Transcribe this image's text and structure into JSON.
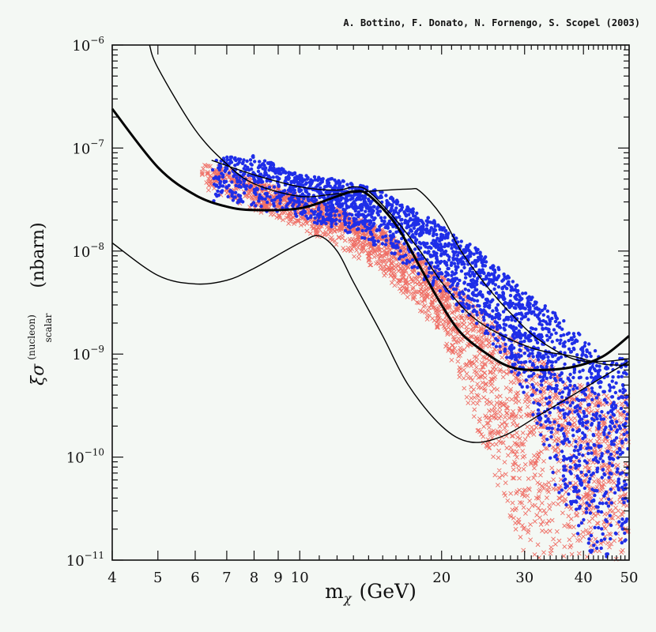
{
  "chart_data": {
    "type": "scatter",
    "title": "",
    "credit": "A. Bottino, F. Donato, N. Fornengo, S. Scopel (2003)",
    "xlabel": "m",
    "xlabel_sub": "χ",
    "xlabel_unit": "(GeV)",
    "ylabel_prefix": "ξσ",
    "ylabel_sup": "(nucleon)",
    "ylabel_sub": "scalar",
    "ylabel_unit": "(nbarn)",
    "xscale": "log",
    "yscale": "log",
    "xlim": [
      4,
      50
    ],
    "ylim": [
      1e-11,
      1e-06
    ],
    "x_ticks": [
      4,
      5,
      6,
      7,
      8,
      9,
      10,
      20,
      30,
      40,
      50
    ],
    "x_tick_labels": [
      "4",
      "5",
      "6",
      "7",
      "8",
      "9",
      "10",
      "20",
      "30",
      "40",
      "50"
    ],
    "y_ticks": [
      1e-11,
      1e-10,
      1e-09,
      1e-08,
      1e-07,
      1e-06
    ],
    "y_tick_labels": [
      [
        "10",
        "−11"
      ],
      [
        "10",
        "−10"
      ],
      [
        "10",
        "−9"
      ],
      [
        "10",
        "−8"
      ],
      [
        "10",
        "−7"
      ],
      [
        "10",
        "−6"
      ]
    ],
    "colors": {
      "background": "#f4f8f4",
      "blue_points": "#1f2ee8",
      "red_crosses": "#ef6f66",
      "curves": "#000000"
    },
    "curves": [
      {
        "name": "thick-exclusion-curve",
        "style": "thick",
        "points": [
          [
            4,
            2.4e-07
          ],
          [
            5,
            6.5e-08
          ],
          [
            6,
            3.5e-08
          ],
          [
            7,
            2.7e-08
          ],
          [
            8,
            2.5e-08
          ],
          [
            10,
            2.6e-08
          ],
          [
            12,
            3.4e-08
          ],
          [
            13,
            3.8e-08
          ],
          [
            14,
            3.5e-08
          ],
          [
            16,
            1.8e-08
          ],
          [
            18,
            7e-09
          ],
          [
            20,
            3e-09
          ],
          [
            22,
            1.6e-09
          ],
          [
            25,
            1e-09
          ],
          [
            28,
            7.5e-10
          ],
          [
            32,
            7e-10
          ],
          [
            38,
            7.5e-10
          ],
          [
            44,
            9.5e-10
          ],
          [
            50,
            1.5e-09
          ]
        ]
      },
      {
        "name": "upper-thin-curve-a",
        "style": "thin",
        "points": [
          [
            4.8,
            1e-06
          ],
          [
            5,
            6e-07
          ],
          [
            6,
            1.5e-07
          ],
          [
            7,
            7e-08
          ],
          [
            8,
            4.5e-08
          ],
          [
            10,
            3.4e-08
          ],
          [
            12,
            3.6e-08
          ],
          [
            14,
            3.8e-08
          ],
          [
            17,
            4e-08
          ],
          [
            18,
            3.8e-08
          ],
          [
            20,
            2.2e-08
          ],
          [
            22,
            1e-08
          ],
          [
            25,
            4.5e-09
          ],
          [
            28,
            2.5e-09
          ],
          [
            32,
            1.4e-09
          ],
          [
            38,
            9e-10
          ],
          [
            44,
            8.5e-10
          ],
          [
            50,
            9e-10
          ]
        ]
      },
      {
        "name": "upper-thin-curve-b",
        "style": "thin",
        "points": [
          [
            6.5,
            7.6e-08
          ],
          [
            8,
            5.5e-08
          ],
          [
            10,
            4.2e-08
          ],
          [
            12,
            3.9e-08
          ],
          [
            13,
            4.2e-08
          ],
          [
            14,
            3.8e-08
          ],
          [
            16,
            2e-08
          ],
          [
            18,
            1e-08
          ],
          [
            20,
            5e-09
          ],
          [
            23,
            2.4e-09
          ],
          [
            27,
            1.5e-09
          ],
          [
            32,
            1.1e-09
          ],
          [
            38,
            9.5e-10
          ],
          [
            44,
            8e-10
          ],
          [
            50,
            7.8e-10
          ]
        ]
      },
      {
        "name": "lower-thin-curve",
        "style": "thin",
        "points": [
          [
            4,
            1.2e-08
          ],
          [
            5,
            5.8e-09
          ],
          [
            6,
            4.8e-09
          ],
          [
            7,
            5.2e-09
          ],
          [
            8,
            6.8e-09
          ],
          [
            10,
            1.2e-08
          ],
          [
            11,
            1.4e-08
          ],
          [
            12,
            1e-08
          ],
          [
            13,
            5e-09
          ],
          [
            15,
            1.5e-09
          ],
          [
            17,
            5e-10
          ],
          [
            20,
            2e-10
          ],
          [
            23,
            1.4e-10
          ],
          [
            27,
            1.6e-10
          ],
          [
            32,
            2.5e-10
          ],
          [
            38,
            4e-10
          ],
          [
            44,
            6e-10
          ],
          [
            50,
            8.5e-10
          ]
        ]
      }
    ],
    "scatter_series": [
      {
        "name": "blue-dots",
        "marker": "dot",
        "count": 2600,
        "band": {
          "x": [
            6.5,
            8,
            10,
            12,
            15,
            20,
            25,
            30,
            35,
            40,
            45,
            50
          ],
          "upper": [
            8e-08,
            8.5e-08,
            5.5e-08,
            5e-08,
            3.8e-08,
            1.8e-08,
            9e-09,
            4e-09,
            2.5e-09,
            1.5e-09,
            8e-10,
            1e-09
          ],
          "lower": [
            3e-08,
            2.6e-08,
            2e-08,
            1.6e-08,
            1e-08,
            4e-09,
            1.5e-09,
            4e-10,
            5e-11,
            1e-11,
            1e-11,
            1e-11
          ]
        }
      },
      {
        "name": "red-crosses",
        "marker": "x",
        "count": 2600,
        "band": {
          "x": [
            6.2,
            7,
            8,
            10,
            12,
            15,
            20,
            25,
            30,
            35,
            40,
            45,
            50
          ],
          "upper": [
            7e-08,
            6.5e-08,
            5e-08,
            3.5e-08,
            2.6e-08,
            1.6e-08,
            6e-09,
            2.5e-09,
            1.2e-09,
            7e-10,
            5e-10,
            4e-10,
            4e-10
          ],
          "lower": [
            4e-08,
            3.2e-08,
            2.4e-08,
            1.6e-08,
            1.1e-08,
            6e-09,
            1.5e-09,
            1e-10,
            1e-11,
            1e-11,
            1e-11,
            1e-11,
            1e-11
          ]
        }
      }
    ]
  }
}
